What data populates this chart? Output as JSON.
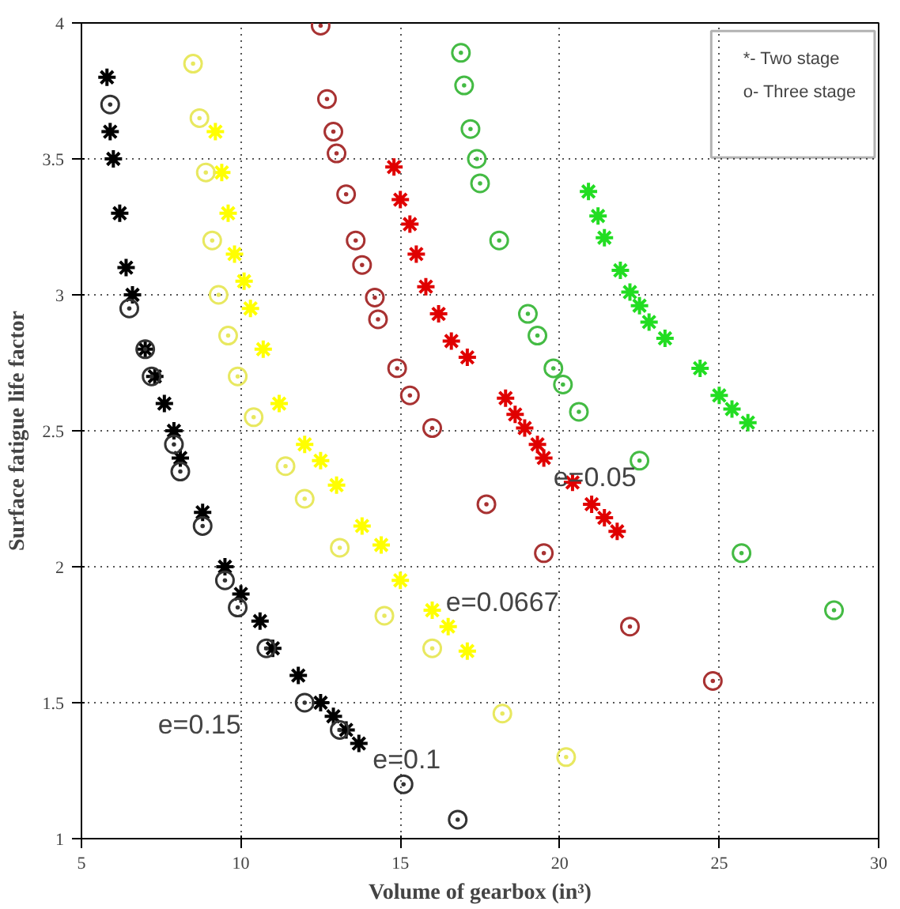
{
  "chart_data": {
    "type": "scatter",
    "xlabel": "Volume of gearbox (in³)",
    "ylabel": "Surface fatigue life factor",
    "xlim": [
      5,
      30
    ],
    "ylim": [
      1,
      4
    ],
    "xticks": [
      5,
      10,
      15,
      20,
      25,
      30
    ],
    "yticks": [
      1,
      1.5,
      2,
      2.5,
      3,
      3.5,
      4
    ],
    "grid": true,
    "annotations": [
      "*- Two stage",
      "o- Three stage",
      "e=0.15",
      "e=0.1",
      "e=0.0667",
      "e=0.05"
    ],
    "series": [
      {
        "color": "#000000",
        "marker": "cross",
        "x": [
          5.8,
          5.9,
          6.0,
          6.2,
          6.4,
          6.6,
          7.0,
          7.3,
          7.6,
          7.9,
          8.1,
          8.8,
          9.5,
          10.0,
          10.6,
          11.0,
          11.8,
          12.5,
          12.9,
          13.3,
          13.7
        ],
        "values": [
          3.8,
          3.6,
          3.5,
          3.3,
          3.1,
          3.0,
          2.8,
          2.7,
          2.6,
          2.5,
          2.4,
          2.2,
          2.0,
          1.9,
          1.8,
          1.7,
          1.6,
          1.5,
          1.45,
          1.4,
          1.35
        ]
      },
      {
        "color": "#333333",
        "marker": "circle",
        "x": [
          5.9,
          6.5,
          7.0,
          7.2,
          7.9,
          8.1,
          8.8,
          9.5,
          9.9,
          10.8,
          12.0,
          13.1,
          15.1,
          16.8
        ],
        "values": [
          3.7,
          2.95,
          2.8,
          2.7,
          2.45,
          2.35,
          2.15,
          1.95,
          1.85,
          1.7,
          1.5,
          1.4,
          1.2,
          1.07
        ]
      },
      {
        "color": "#ffff00",
        "marker": "cross",
        "x": [
          9.2,
          9.4,
          9.6,
          9.8,
          10.1,
          10.3,
          10.7,
          11.2,
          12.0,
          12.5,
          13.0,
          13.8,
          14.4,
          15.0,
          16.0,
          16.5,
          17.1
        ],
        "values": [
          3.6,
          3.45,
          3.3,
          3.15,
          3.05,
          2.95,
          2.8,
          2.6,
          2.45,
          2.39,
          2.3,
          2.15,
          2.08,
          1.95,
          1.84,
          1.78,
          1.69
        ]
      },
      {
        "color": "#e8e860",
        "marker": "circle",
        "x": [
          8.5,
          8.7,
          8.9,
          9.1,
          9.3,
          9.6,
          9.9,
          10.4,
          11.4,
          12.0,
          13.1,
          14.5,
          16.0,
          18.2,
          20.2
        ],
        "values": [
          3.85,
          3.65,
          3.45,
          3.2,
          3.0,
          2.85,
          2.7,
          2.55,
          2.37,
          2.25,
          2.07,
          1.82,
          1.7,
          1.46,
          1.3
        ]
      },
      {
        "color": "#e00000",
        "marker": "cross",
        "x": [
          14.8,
          15.0,
          15.3,
          15.5,
          15.8,
          16.2,
          16.6,
          17.1,
          18.3,
          18.6,
          18.9,
          19.3,
          19.5,
          20.4,
          21.0,
          21.4,
          21.8
        ],
        "values": [
          3.47,
          3.35,
          3.26,
          3.15,
          3.03,
          2.93,
          2.83,
          2.77,
          2.62,
          2.56,
          2.51,
          2.45,
          2.4,
          2.31,
          2.23,
          2.18,
          2.13
        ]
      },
      {
        "color": "#a83232",
        "marker": "circle",
        "x": [
          12.5,
          12.7,
          12.9,
          13.0,
          13.3,
          13.6,
          13.8,
          14.2,
          14.3,
          14.9,
          15.3,
          16.0,
          17.7,
          19.5,
          22.2,
          24.8
        ],
        "values": [
          3.99,
          3.72,
          3.6,
          3.52,
          3.37,
          3.2,
          3.11,
          2.99,
          2.91,
          2.73,
          2.63,
          2.51,
          2.23,
          2.05,
          1.78,
          1.58
        ]
      },
      {
        "color": "#22dd22",
        "marker": "cross",
        "x": [
          20.9,
          21.2,
          21.4,
          21.9,
          22.2,
          22.5,
          22.8,
          23.3,
          24.4,
          25.0,
          25.4,
          25.9
        ],
        "values": [
          3.38,
          3.29,
          3.21,
          3.09,
          3.01,
          2.96,
          2.9,
          2.84,
          2.73,
          2.63,
          2.58,
          2.53
        ]
      },
      {
        "color": "#44bb44",
        "marker": "circle",
        "x": [
          16.9,
          17.0,
          17.2,
          17.4,
          17.5,
          18.1,
          19.0,
          19.3,
          19.8,
          20.1,
          20.6,
          22.5,
          25.7,
          28.6
        ],
        "values": [
          3.89,
          3.77,
          3.61,
          3.5,
          3.41,
          3.2,
          2.93,
          2.85,
          2.73,
          2.67,
          2.57,
          2.39,
          2.05,
          1.84
        ]
      }
    ]
  }
}
